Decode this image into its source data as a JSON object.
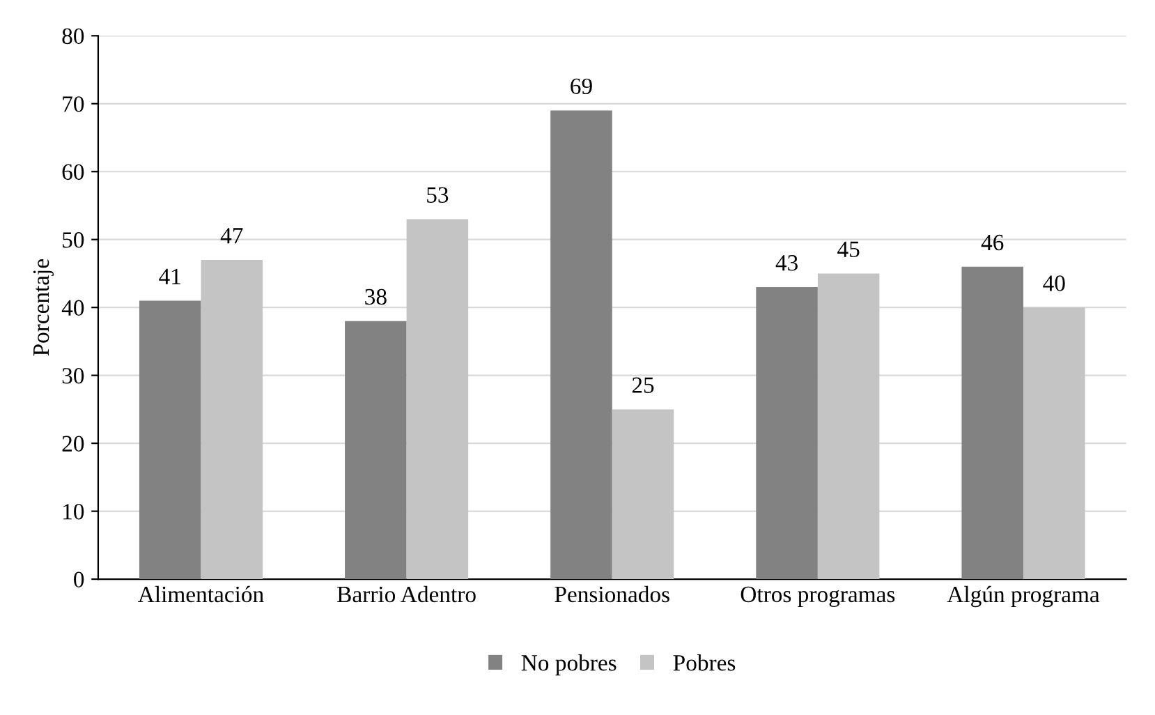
{
  "chart_data": {
    "type": "bar",
    "ylabel": "Porcentaje",
    "categories": [
      "Alimentación",
      "Barrio Adentro",
      "Pensionados",
      "Otros programas",
      "Algún programa"
    ],
    "series": [
      {
        "name": "No pobres",
        "color": "#828282",
        "values": [
          41,
          38,
          69,
          43,
          46
        ]
      },
      {
        "name": "Pobres",
        "color": "#c4c4c4",
        "values": [
          47,
          53,
          25,
          45,
          40
        ]
      }
    ],
    "ylim": [
      0,
      80
    ],
    "yticks": [
      0,
      10,
      20,
      30,
      40,
      50,
      60,
      70,
      80
    ],
    "grid": "y",
    "legend": "bottom",
    "data_labels": true
  }
}
